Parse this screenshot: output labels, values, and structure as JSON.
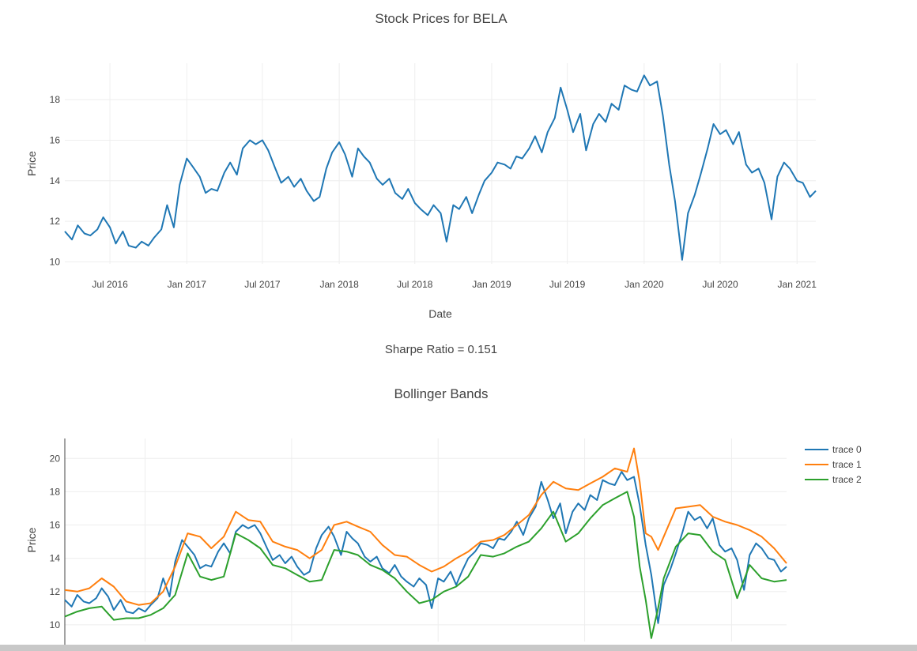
{
  "colors": {
    "trace0": "#1f77b4",
    "trace1": "#ff7f0e",
    "trace2": "#2ca02c",
    "grid": "#eeeeee",
    "text": "#444444"
  },
  "sharpe_text": "Sharpe Ratio = 0.151",
  "chart_data": [
    {
      "type": "line",
      "title": "Stock Prices for BELA",
      "xlabel": "Date",
      "ylabel": "Price",
      "grid": true,
      "xrange": [
        "2016-03-15",
        "2021-02-15"
      ],
      "ylim": [
        9.9,
        19.8
      ],
      "xticks": [
        {
          "date": "2016-07-01",
          "label": "Jul 2016"
        },
        {
          "date": "2017-01-01",
          "label": "Jan 2017"
        },
        {
          "date": "2017-07-01",
          "label": "Jul 2017"
        },
        {
          "date": "2018-01-01",
          "label": "Jan 2018"
        },
        {
          "date": "2018-07-01",
          "label": "Jul 2018"
        },
        {
          "date": "2019-01-01",
          "label": "Jan 2019"
        },
        {
          "date": "2019-07-01",
          "label": "Jul 2019"
        },
        {
          "date": "2020-01-01",
          "label": "Jan 2020"
        },
        {
          "date": "2020-07-01",
          "label": "Jul 2020"
        },
        {
          "date": "2021-01-01",
          "label": "Jan 2021"
        }
      ],
      "yticks": [
        10,
        12,
        14,
        16,
        18
      ],
      "series": [
        {
          "color": "#1f77b4",
          "x": [
            "2016-03-15",
            "2016-04-01",
            "2016-04-15",
            "2016-05-01",
            "2016-05-15",
            "2016-06-01",
            "2016-06-15",
            "2016-07-01",
            "2016-07-15",
            "2016-08-01",
            "2016-08-15",
            "2016-09-01",
            "2016-09-15",
            "2016-10-01",
            "2016-10-15",
            "2016-11-01",
            "2016-11-15",
            "2016-12-01",
            "2016-12-15",
            "2017-01-01",
            "2017-01-15",
            "2017-02-01",
            "2017-02-15",
            "2017-03-01",
            "2017-03-15",
            "2017-04-01",
            "2017-04-15",
            "2017-05-01",
            "2017-05-15",
            "2017-06-01",
            "2017-06-15",
            "2017-07-01",
            "2017-07-15",
            "2017-08-01",
            "2017-08-15",
            "2017-09-01",
            "2017-09-15",
            "2017-10-01",
            "2017-10-15",
            "2017-11-01",
            "2017-11-15",
            "2017-12-01",
            "2017-12-15",
            "2018-01-01",
            "2018-01-15",
            "2018-02-01",
            "2018-02-15",
            "2018-03-01",
            "2018-03-15",
            "2018-04-01",
            "2018-04-15",
            "2018-05-01",
            "2018-05-15",
            "2018-06-01",
            "2018-06-15",
            "2018-07-01",
            "2018-07-15",
            "2018-08-01",
            "2018-08-15",
            "2018-09-01",
            "2018-09-15",
            "2018-10-01",
            "2018-10-15",
            "2018-11-01",
            "2018-11-15",
            "2018-12-01",
            "2018-12-15",
            "2019-01-01",
            "2019-01-15",
            "2019-02-01",
            "2019-02-15",
            "2019-03-01",
            "2019-03-15",
            "2019-04-01",
            "2019-04-15",
            "2019-05-01",
            "2019-05-15",
            "2019-06-01",
            "2019-06-15",
            "2019-07-01",
            "2019-07-15",
            "2019-08-01",
            "2019-08-15",
            "2019-09-01",
            "2019-09-15",
            "2019-10-01",
            "2019-10-15",
            "2019-11-01",
            "2019-11-15",
            "2019-12-01",
            "2019-12-15",
            "2020-01-01",
            "2020-01-15",
            "2020-02-01",
            "2020-02-15",
            "2020-03-01",
            "2020-03-15",
            "2020-04-01",
            "2020-04-15",
            "2020-05-01",
            "2020-05-15",
            "2020-06-01",
            "2020-06-15",
            "2020-07-01",
            "2020-07-15",
            "2020-08-01",
            "2020-08-15",
            "2020-09-01",
            "2020-09-15",
            "2020-10-01",
            "2020-10-15",
            "2020-11-01",
            "2020-11-15",
            "2020-12-01",
            "2020-12-15",
            "2021-01-01",
            "2021-01-15",
            "2021-02-01",
            "2021-02-15"
          ],
          "y": [
            11.5,
            11.1,
            11.8,
            11.4,
            11.3,
            11.6,
            12.2,
            11.7,
            10.9,
            11.5,
            10.8,
            10.7,
            11.0,
            10.8,
            11.2,
            11.6,
            12.8,
            11.7,
            13.8,
            15.1,
            14.7,
            14.2,
            13.4,
            13.6,
            13.5,
            14.4,
            14.9,
            14.3,
            15.6,
            16.0,
            15.8,
            16.0,
            15.5,
            14.6,
            13.9,
            14.2,
            13.7,
            14.1,
            13.5,
            13.0,
            13.2,
            14.6,
            15.4,
            15.9,
            15.3,
            14.2,
            15.6,
            15.2,
            14.9,
            14.1,
            13.8,
            14.1,
            13.4,
            13.1,
            13.6,
            12.9,
            12.6,
            12.3,
            12.8,
            12.4,
            11.0,
            12.8,
            12.6,
            13.2,
            12.4,
            13.3,
            14.0,
            14.4,
            14.9,
            14.8,
            14.6,
            15.2,
            15.1,
            15.6,
            16.2,
            15.4,
            16.4,
            17.1,
            18.6,
            17.5,
            16.4,
            17.3,
            15.5,
            16.8,
            17.3,
            16.9,
            17.8,
            17.5,
            18.7,
            18.5,
            18.4,
            19.2,
            18.7,
            18.9,
            17.2,
            14.8,
            13.0,
            10.1,
            12.4,
            13.3,
            14.3,
            15.6,
            16.8,
            16.3,
            16.5,
            15.8,
            16.4,
            14.8,
            14.4,
            14.6,
            13.9,
            12.1,
            14.2,
            14.9,
            14.6,
            14.0,
            13.9,
            13.2,
            13.5
          ]
        }
      ]
    },
    {
      "type": "line",
      "title": "Bollinger Bands",
      "xlabel": "",
      "ylabel": "Price",
      "grid": true,
      "xrange": [
        "2016-03-15",
        "2021-02-15"
      ],
      "ylim": [
        9.0,
        21.2
      ],
      "yticks": [
        10,
        12,
        14,
        16,
        18,
        20
      ],
      "legend": "top-right",
      "series": [
        {
          "name": "trace 0",
          "color": "#1f77b4",
          "values_from": "chart_data.0.series.0"
        },
        {
          "name": "trace 1",
          "color": "#ff7f0e",
          "x": [
            "2016-03-15",
            "2016-04-15",
            "2016-05-15",
            "2016-06-15",
            "2016-07-15",
            "2016-08-15",
            "2016-09-15",
            "2016-10-15",
            "2016-11-15",
            "2016-12-15",
            "2017-01-15",
            "2017-02-15",
            "2017-03-15",
            "2017-04-15",
            "2017-05-15",
            "2017-06-15",
            "2017-07-15",
            "2017-08-15",
            "2017-09-15",
            "2017-10-15",
            "2017-11-15",
            "2017-12-15",
            "2018-01-15",
            "2018-02-15",
            "2018-03-15",
            "2018-04-15",
            "2018-05-15",
            "2018-06-15",
            "2018-07-15",
            "2018-08-15",
            "2018-09-15",
            "2018-10-15",
            "2018-11-15",
            "2018-12-15",
            "2019-01-15",
            "2019-02-15",
            "2019-03-15",
            "2019-04-15",
            "2019-05-15",
            "2019-06-15",
            "2019-07-15",
            "2019-08-15",
            "2019-09-15",
            "2019-10-15",
            "2019-11-15",
            "2019-12-15",
            "2020-01-15",
            "2020-02-01",
            "2020-02-15",
            "2020-03-01",
            "2020-03-15",
            "2020-04-01",
            "2020-04-15",
            "2020-05-15",
            "2020-06-15",
            "2020-07-15",
            "2020-08-15",
            "2020-09-15",
            "2020-10-15",
            "2020-11-15",
            "2020-12-15",
            "2021-01-15",
            "2021-02-15"
          ],
          "y": [
            12.1,
            12.0,
            12.2,
            12.8,
            12.3,
            11.4,
            11.2,
            11.3,
            12.0,
            13.5,
            15.5,
            15.3,
            14.6,
            15.3,
            16.8,
            16.3,
            16.2,
            15.0,
            14.7,
            14.5,
            14.0,
            14.5,
            16.0,
            16.2,
            15.9,
            15.6,
            14.8,
            14.2,
            14.1,
            13.6,
            13.2,
            13.5,
            14.0,
            14.4,
            15.0,
            15.1,
            15.4,
            16.0,
            16.6,
            17.8,
            18.6,
            18.2,
            18.1,
            18.5,
            18.9,
            19.4,
            19.2,
            20.6,
            18.6,
            15.5,
            15.3,
            14.5,
            15.3,
            17.0,
            17.1,
            17.2,
            16.5,
            16.2,
            16.0,
            15.7,
            15.3,
            14.6,
            13.7
          ]
        },
        {
          "name": "trace 2",
          "color": "#2ca02c",
          "x": [
            "2016-03-15",
            "2016-04-15",
            "2016-05-15",
            "2016-06-15",
            "2016-07-15",
            "2016-08-15",
            "2016-09-15",
            "2016-10-15",
            "2016-11-15",
            "2016-12-15",
            "2017-01-15",
            "2017-02-15",
            "2017-03-15",
            "2017-04-15",
            "2017-05-15",
            "2017-06-15",
            "2017-07-15",
            "2017-08-15",
            "2017-09-15",
            "2017-10-15",
            "2017-11-15",
            "2017-12-15",
            "2018-01-15",
            "2018-02-15",
            "2018-03-15",
            "2018-04-15",
            "2018-05-15",
            "2018-06-15",
            "2018-07-15",
            "2018-08-15",
            "2018-09-15",
            "2018-10-15",
            "2018-11-15",
            "2018-12-15",
            "2019-01-15",
            "2019-02-15",
            "2019-03-15",
            "2019-04-15",
            "2019-05-15",
            "2019-06-15",
            "2019-07-15",
            "2019-08-15",
            "2019-09-15",
            "2019-10-15",
            "2019-11-15",
            "2019-12-15",
            "2020-01-15",
            "2020-02-01",
            "2020-02-15",
            "2020-03-01",
            "2020-03-15",
            "2020-04-01",
            "2020-04-15",
            "2020-05-15",
            "2020-06-15",
            "2020-07-15",
            "2020-08-15",
            "2020-09-15",
            "2020-10-15",
            "2020-11-15",
            "2020-12-15",
            "2021-01-15",
            "2021-02-15"
          ],
          "y": [
            10.5,
            10.8,
            11.0,
            11.1,
            10.3,
            10.4,
            10.4,
            10.6,
            11.0,
            11.8,
            14.3,
            12.9,
            12.7,
            12.9,
            15.5,
            15.1,
            14.6,
            13.6,
            13.4,
            13.0,
            12.6,
            12.7,
            14.5,
            14.4,
            14.2,
            13.6,
            13.3,
            12.8,
            12.0,
            11.3,
            11.5,
            12.0,
            12.3,
            12.9,
            14.2,
            14.1,
            14.3,
            14.7,
            15.0,
            15.8,
            16.8,
            15.0,
            15.5,
            16.4,
            17.2,
            17.6,
            18.0,
            16.5,
            13.5,
            11.5,
            9.2,
            11.0,
            12.8,
            14.7,
            15.5,
            15.4,
            14.4,
            13.9,
            11.6,
            13.6,
            12.8,
            12.6,
            12.7
          ]
        }
      ]
    }
  ]
}
